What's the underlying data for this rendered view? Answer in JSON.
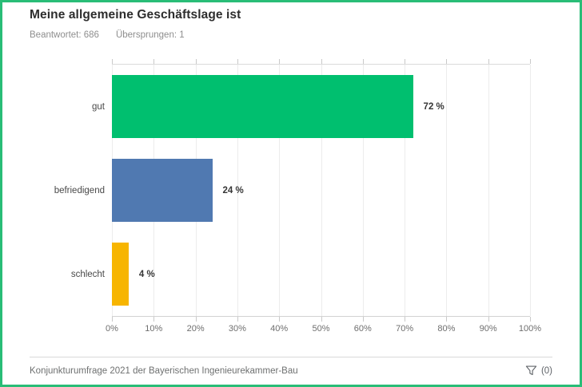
{
  "header": {
    "title": "Meine allgemeine Geschäftslage ist",
    "answered": "Beantwortet: 686",
    "skipped": "Übersprungen: 1"
  },
  "chart_data": {
    "type": "bar",
    "orientation": "horizontal",
    "title": "Meine allgemeine Geschäftslage ist",
    "categories": [
      "gut",
      "befriedigend",
      "schlecht"
    ],
    "values": [
      72,
      24,
      4
    ],
    "value_labels": [
      "72 %",
      "24 %",
      "4 %"
    ],
    "bar_colors": [
      "#00bf6f",
      "#5079b1",
      "#f7b500"
    ],
    "xlim": [
      0,
      100
    ],
    "x_ticks": [
      "0%",
      "10%",
      "20%",
      "30%",
      "40%",
      "50%",
      "60%",
      "70%",
      "80%",
      "90%",
      "100%"
    ],
    "grid": true,
    "legend": false
  },
  "footer": {
    "source": "Konjunkturumfrage 2021 der Bayerischen Ingenieurekammer-Bau",
    "filter_count": "(0)"
  },
  "colors": {
    "frame_border": "#29bd77",
    "bar_green": "#00bf6f",
    "bar_blue": "#5079b1",
    "bar_yellow": "#f7b500"
  }
}
